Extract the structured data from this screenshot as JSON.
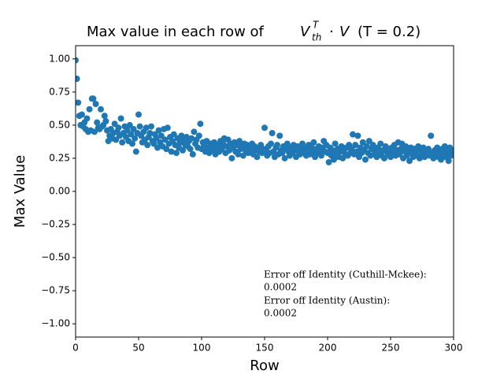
{
  "chart_data": {
    "type": "scatter",
    "title": [
      "Max value in each row of ",
      "V",
      "T",
      "th",
      "·",
      "V",
      "(T = 0.2)"
    ],
    "x_label": "Row",
    "y_label": "Max Value",
    "color": "#1f77b4",
    "xlim": [
      0,
      300
    ],
    "ylim": [
      -1.1,
      1.1
    ],
    "xticks": [
      0,
      50,
      100,
      150,
      200,
      250,
      300
    ],
    "yticks": [
      {
        "value": -1,
        "label": "−1.00"
      },
      {
        "value": -0.75,
        "label": "−0.75"
      },
      {
        "value": -0.5,
        "label": "−0.50"
      },
      {
        "value": -0.25,
        "label": "−0.25"
      },
      {
        "value": 0,
        "label": "0.00"
      },
      {
        "value": 0.25,
        "label": "0.25"
      },
      {
        "value": 0.5,
        "label": "0.50"
      },
      {
        "value": 0.75,
        "label": "0.75"
      },
      {
        "value": 1,
        "label": "1.00"
      }
    ],
    "annotations": [
      "Error off Identity (Cuthill-Mckee):",
      "0.0002",
      "Error off Identity (Austin):",
      "0.0002"
    ],
    "x": [
      0,
      1,
      2,
      3,
      4,
      5,
      6,
      7,
      8,
      9,
      10,
      11,
      12,
      13,
      14,
      15,
      16,
      17,
      18,
      19,
      20,
      21,
      22,
      23,
      24,
      25,
      26,
      27,
      28,
      29,
      30,
      31,
      32,
      33,
      34,
      35,
      36,
      37,
      38,
      39,
      40,
      41,
      42,
      43,
      44,
      45,
      46,
      47,
      48,
      49,
      50,
      51,
      52,
      53,
      54,
      55,
      56,
      57,
      58,
      59,
      60,
      61,
      62,
      63,
      64,
      65,
      66,
      67,
      68,
      69,
      70,
      71,
      72,
      73,
      74,
      75,
      76,
      77,
      78,
      79,
      80,
      81,
      82,
      83,
      84,
      85,
      86,
      87,
      88,
      89,
      90,
      91,
      92,
      93,
      94,
      95,
      96,
      97,
      98,
      99,
      100,
      101,
      102,
      103,
      104,
      105,
      106,
      107,
      108,
      109,
      110,
      111,
      112,
      113,
      114,
      115,
      116,
      117,
      118,
      119,
      120,
      121,
      122,
      123,
      124,
      125,
      126,
      127,
      128,
      129,
      130,
      131,
      132,
      133,
      134,
      135,
      136,
      137,
      138,
      139,
      140,
      141,
      142,
      143,
      144,
      145,
      146,
      147,
      148,
      149,
      150,
      151,
      152,
      153,
      154,
      155,
      156,
      157,
      158,
      159,
      160,
      161,
      162,
      163,
      164,
      165,
      166,
      167,
      168,
      169,
      170,
      171,
      172,
      173,
      174,
      175,
      176,
      177,
      178,
      179,
      180,
      181,
      182,
      183,
      184,
      185,
      186,
      187,
      188,
      189,
      190,
      191,
      192,
      193,
      194,
      195,
      196,
      197,
      198,
      199,
      200,
      201,
      202,
      203,
      204,
      205,
      206,
      207,
      208,
      209,
      210,
      211,
      212,
      213,
      214,
      215,
      216,
      217,
      218,
      219,
      220,
      221,
      222,
      223,
      224,
      225,
      226,
      227,
      228,
      229,
      230,
      231,
      232,
      233,
      234,
      235,
      236,
      237,
      238,
      239,
      240,
      241,
      242,
      243,
      244,
      245,
      246,
      247,
      248,
      249,
      250,
      251,
      252,
      253,
      254,
      255,
      256,
      257,
      258,
      259,
      260,
      261,
      262,
      263,
      264,
      265,
      266,
      267,
      268,
      269,
      270,
      271,
      272,
      273,
      274,
      275,
      276,
      277,
      278,
      279,
      280,
      281,
      282,
      283,
      284,
      285,
      286,
      287,
      288,
      289,
      290,
      291,
      292,
      293,
      294,
      295,
      296,
      297,
      298,
      299
    ],
    "values": [
      0.99,
      0.85,
      0.67,
      0.57,
      0.5,
      0.58,
      0.49,
      0.52,
      0.47,
      0.55,
      0.45,
      0.62,
      0.46,
      0.7,
      0.7,
      0.45,
      0.66,
      0.52,
      0.48,
      0.47,
      0.62,
      0.49,
      0.5,
      0.57,
      0.53,
      0.46,
      0.38,
      0.42,
      0.47,
      0.4,
      0.44,
      0.51,
      0.39,
      0.45,
      0.48,
      0.42,
      0.55,
      0.37,
      0.44,
      0.49,
      0.41,
      0.46,
      0.38,
      0.5,
      0.43,
      0.36,
      0.47,
      0.4,
      0.3,
      0.44,
      0.58,
      0.49,
      0.42,
      0.37,
      0.45,
      0.39,
      0.48,
      0.35,
      0.41,
      0.44,
      0.49,
      0.38,
      0.36,
      0.43,
      0.4,
      0.33,
      0.46,
      0.37,
      0.42,
      0.34,
      0.47,
      0.39,
      0.32,
      0.48,
      0.36,
      0.41,
      0.3,
      0.38,
      0.43,
      0.35,
      0.29,
      0.4,
      0.33,
      0.37,
      0.42,
      0.31,
      0.39,
      0.35,
      0.41,
      0.34,
      0.38,
      0.32,
      0.4,
      0.28,
      0.45,
      0.36,
      0.39,
      0.33,
      0.42,
      0.51,
      0.32,
      0.37,
      0.35,
      0.3,
      0.38,
      0.33,
      0.29,
      0.36,
      0.34,
      0.31,
      0.37,
      0.28,
      0.33,
      0.35,
      0.3,
      0.38,
      0.32,
      0.36,
      0.4,
      0.29,
      0.34,
      0.39,
      0.31,
      0.36,
      0.25,
      0.33,
      0.37,
      0.3,
      0.35,
      0.28,
      0.38,
      0.32,
      0.34,
      0.27,
      0.36,
      0.31,
      0.35,
      0.29,
      0.33,
      0.3,
      0.36,
      0.28,
      0.34,
      0.31,
      0.26,
      0.33,
      0.3,
      0.35,
      0.29,
      0.32,
      0.48,
      0.31,
      0.27,
      0.34,
      0.29,
      0.36,
      0.44,
      0.3,
      0.26,
      0.33,
      0.35,
      0.28,
      0.42,
      0.31,
      0.29,
      0.34,
      0.25,
      0.32,
      0.36,
      0.3,
      0.27,
      0.33,
      0.29,
      0.35,
      0.31,
      0.26,
      0.34,
      0.3,
      0.28,
      0.32,
      0.36,
      0.29,
      0.33,
      0.27,
      0.31,
      0.35,
      0.28,
      0.34,
      0.3,
      0.37,
      0.26,
      0.32,
      0.29,
      0.34,
      0.31,
      0.27,
      0.33,
      0.38,
      0.3,
      0.35,
      0.29,
      0.22,
      0.33,
      0.27,
      0.31,
      0.24,
      0.36,
      0.28,
      0.32,
      0.26,
      0.3,
      0.34,
      0.25,
      0.31,
      0.28,
      0.33,
      0.27,
      0.35,
      0.29,
      0.32,
      0.43,
      0.28,
      0.35,
      0.3,
      0.42,
      0.26,
      0.33,
      0.29,
      0.37,
      0.31,
      0.24,
      0.34,
      0.29,
      0.38,
      0.27,
      0.32,
      0.35,
      0.28,
      0.31,
      0.26,
      0.33,
      0.29,
      0.36,
      0.27,
      0.31,
      0.25,
      0.34,
      0.3,
      0.28,
      0.32,
      0.26,
      0.33,
      0.29,
      0.35,
      0.27,
      0.31,
      0.37,
      0.28,
      0.32,
      0.36,
      0.25,
      0.3,
      0.34,
      0.27,
      0.31,
      0.23,
      0.33,
      0.29,
      0.26,
      0.32,
      0.3,
      0.27,
      0.34,
      0.25,
      0.31,
      0.28,
      0.33,
      0.26,
      0.3,
      0.29,
      0.32,
      0.27,
      0.42,
      0.29,
      0.25,
      0.31,
      0.28,
      0.33,
      0.26,
      0.3,
      0.24,
      0.32,
      0.28,
      0.34,
      0.26,
      0.3,
      0.23,
      0.33,
      0.27,
      0.31
    ]
  }
}
